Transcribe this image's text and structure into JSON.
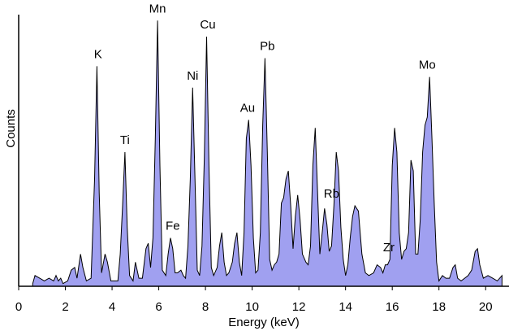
{
  "chart_data": {
    "type": "area",
    "title": "",
    "xlabel": "Energy (keV)",
    "ylabel": "Counts",
    "xlim": [
      0,
      21
    ],
    "ylim": [
      0,
      1.0
    ],
    "y_ticks_shown": false,
    "grid": false,
    "legend": "none",
    "colors": {
      "fill": "#a0a0f0",
      "stroke": "#000000"
    },
    "x_ticks": [
      0,
      2,
      4,
      6,
      8,
      10,
      12,
      14,
      16,
      18,
      20
    ],
    "x": [
      0.6,
      0.7,
      0.9,
      1.1,
      1.3,
      1.5,
      1.6,
      1.7,
      1.8,
      1.9,
      2.1,
      2.25,
      2.4,
      2.5,
      2.65,
      2.75,
      2.9,
      3.1,
      3.25,
      3.35,
      3.45,
      3.55,
      3.7,
      3.8,
      3.95,
      4.1,
      4.25,
      4.35,
      4.45,
      4.55,
      4.65,
      4.75,
      4.9,
      5.0,
      5.15,
      5.3,
      5.45,
      5.55,
      5.65,
      5.75,
      5.85,
      5.95,
      6.05,
      6.15,
      6.3,
      6.4,
      6.5,
      6.6,
      6.7,
      6.8,
      6.95,
      7.05,
      7.15,
      7.25,
      7.35,
      7.45,
      7.55,
      7.65,
      7.75,
      7.85,
      7.95,
      8.05,
      8.15,
      8.25,
      8.35,
      8.5,
      8.6,
      8.7,
      8.8,
      8.9,
      9.0,
      9.15,
      9.25,
      9.35,
      9.45,
      9.55,
      9.65,
      9.75,
      9.85,
      9.95,
      10.05,
      10.15,
      10.25,
      10.35,
      10.45,
      10.55,
      10.65,
      10.75,
      10.85,
      10.95,
      11.05,
      11.15,
      11.25,
      11.35,
      11.45,
      11.55,
      11.65,
      11.75,
      11.85,
      11.95,
      12.05,
      12.15,
      12.3,
      12.4,
      12.5,
      12.6,
      12.7,
      12.8,
      12.9,
      13.0,
      13.1,
      13.2,
      13.3,
      13.4,
      13.5,
      13.6,
      13.7,
      13.8,
      13.9,
      14.0,
      14.1,
      14.2,
      14.3,
      14.4,
      14.55,
      14.7,
      14.85,
      15.0,
      15.2,
      15.35,
      15.5,
      15.6,
      15.7,
      15.8,
      15.9,
      16.0,
      16.1,
      16.2,
      16.3,
      16.4,
      16.5,
      16.6,
      16.7,
      16.8,
      16.9,
      17.0,
      17.1,
      17.2,
      17.3,
      17.4,
      17.5,
      17.6,
      17.7,
      17.8,
      17.9,
      18.0,
      18.15,
      18.3,
      18.45,
      18.6,
      18.7,
      18.8,
      18.95,
      19.1,
      19.25,
      19.4,
      19.55,
      19.65,
      19.75,
      19.9,
      20.1,
      20.3,
      20.5,
      20.7
    ],
    "y": [
      0.01,
      0.04,
      0.03,
      0.02,
      0.03,
      0.02,
      0.04,
      0.02,
      0.03,
      0.01,
      0.02,
      0.06,
      0.07,
      0.03,
      0.12,
      0.07,
      0.02,
      0.03,
      0.4,
      0.82,
      0.35,
      0.05,
      0.12,
      0.09,
      0.02,
      0.02,
      0.02,
      0.12,
      0.3,
      0.5,
      0.22,
      0.04,
      0.02,
      0.09,
      0.03,
      0.03,
      0.14,
      0.16,
      0.07,
      0.18,
      0.55,
      0.99,
      0.45,
      0.06,
      0.04,
      0.12,
      0.18,
      0.14,
      0.05,
      0.05,
      0.06,
      0.04,
      0.03,
      0.15,
      0.4,
      0.74,
      0.4,
      0.06,
      0.04,
      0.15,
      0.48,
      0.93,
      0.45,
      0.07,
      0.04,
      0.07,
      0.15,
      0.2,
      0.09,
      0.04,
      0.05,
      0.09,
      0.16,
      0.2,
      0.09,
      0.04,
      0.2,
      0.55,
      0.62,
      0.45,
      0.18,
      0.05,
      0.06,
      0.2,
      0.6,
      0.85,
      0.5,
      0.1,
      0.06,
      0.08,
      0.09,
      0.12,
      0.31,
      0.33,
      0.4,
      0.43,
      0.3,
      0.14,
      0.26,
      0.34,
      0.25,
      0.12,
      0.09,
      0.08,
      0.15,
      0.45,
      0.59,
      0.35,
      0.12,
      0.2,
      0.29,
      0.23,
      0.13,
      0.15,
      0.3,
      0.5,
      0.43,
      0.22,
      0.1,
      0.04,
      0.08,
      0.18,
      0.26,
      0.3,
      0.28,
      0.12,
      0.05,
      0.04,
      0.05,
      0.08,
      0.07,
      0.05,
      0.08,
      0.08,
      0.1,
      0.45,
      0.59,
      0.5,
      0.2,
      0.1,
      0.13,
      0.14,
      0.2,
      0.47,
      0.43,
      0.12,
      0.12,
      0.25,
      0.5,
      0.6,
      0.63,
      0.78,
      0.55,
      0.3,
      0.09,
      0.02,
      0.04,
      0.03,
      0.03,
      0.07,
      0.08,
      0.03,
      0.02,
      0.03,
      0.04,
      0.06,
      0.13,
      0.14,
      0.08,
      0.03,
      0.04,
      0.03,
      0.02,
      0.04
    ],
    "peak_labels": [
      {
        "text": "K",
        "x": 3.4
      },
      {
        "text": "Ti",
        "x": 4.55
      },
      {
        "text": "Mn",
        "x": 5.95
      },
      {
        "text": "Fe",
        "x": 6.6
      },
      {
        "text": "Ni",
        "x": 7.45
      },
      {
        "text": "Cu",
        "x": 8.1
      },
      {
        "text": "Au",
        "x": 9.8
      },
      {
        "text": "Pb",
        "x": 10.65
      },
      {
        "text": "Rb",
        "x": 13.4
      },
      {
        "text": "Zr",
        "x": 15.85
      },
      {
        "text": "Mo",
        "x": 17.5
      }
    ]
  }
}
